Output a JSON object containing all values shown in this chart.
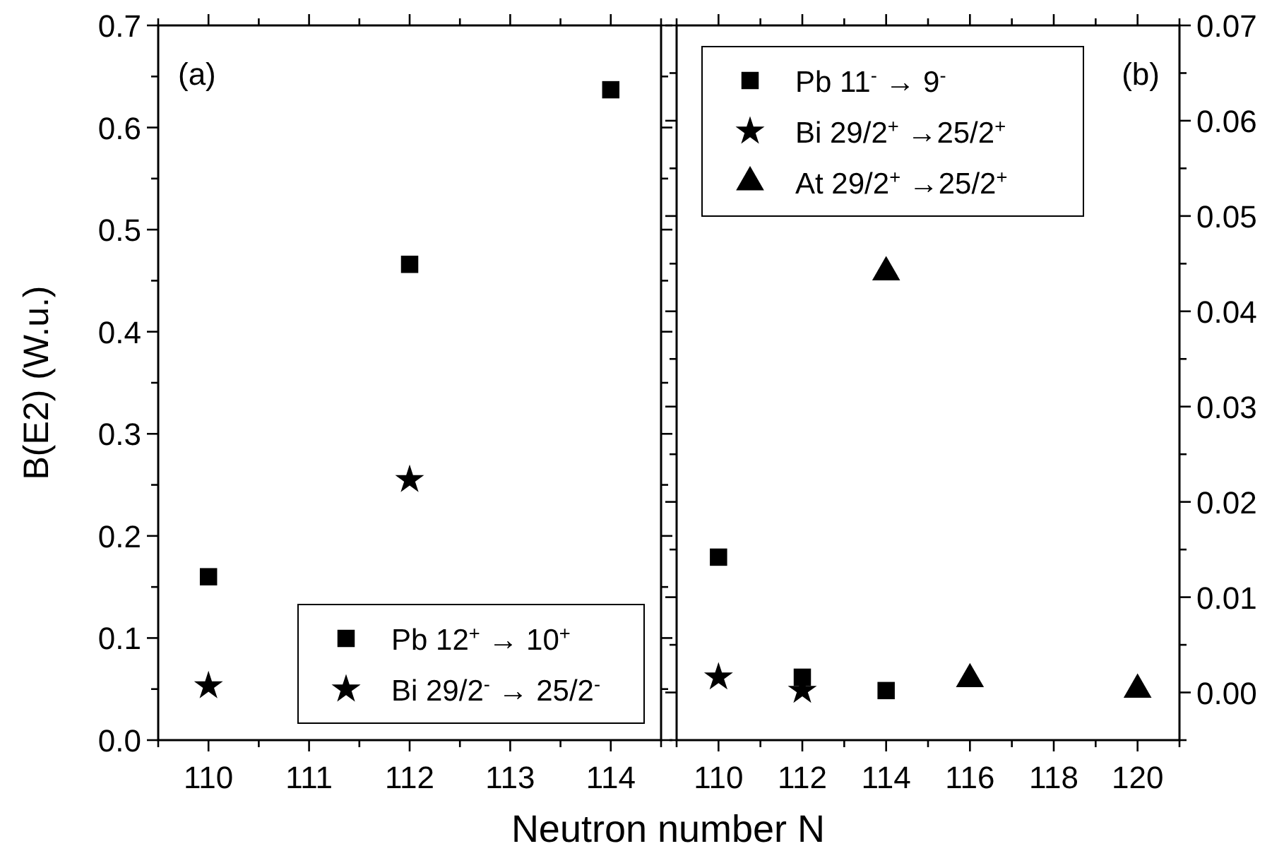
{
  "chart_data": [
    {
      "type": "scatter",
      "xlabel": "Neutron number N",
      "ylabel": "B(E2) (W.u.)",
      "annotations": [
        "(a)"
      ],
      "legend": "bottom right",
      "xlim": [
        109.5,
        114.5
      ],
      "ylim": [
        0,
        0.7
      ],
      "xticks": [
        {
          "value": 109.5,
          "label": null
        },
        110,
        {
          "value": 110.5,
          "label": null
        },
        111,
        {
          "value": 111.5,
          "label": null
        },
        112,
        {
          "value": 112.5,
          "label": null
        },
        113,
        {
          "value": 113.5,
          "label": null
        },
        114,
        {
          "value": 114.5,
          "label": null
        }
      ],
      "yticks": [
        {
          "value": 0,
          "label": "0.0"
        },
        {
          "value": 0.05,
          "label": null
        },
        0.1,
        {
          "value": 0.15,
          "label": null
        },
        0.2,
        {
          "value": 0.25,
          "label": null
        },
        0.3,
        {
          "value": 0.35,
          "label": null
        },
        0.4,
        {
          "value": 0.45,
          "label": null
        },
        0.5,
        {
          "value": 0.55,
          "label": null
        },
        0.6,
        {
          "value": 0.65,
          "label": null
        },
        0.7
      ],
      "series": [
        {
          "name": "Pb 12$^{+}$ → 10$^{+}$",
          "color": "#000000",
          "marker": "square",
          "x": [
            110,
            112,
            114
          ],
          "values": [
            0.16,
            0.466,
            0.637
          ]
        },
        {
          "name": "Bi 29/2$^{-}$ → 25/2$^{-}$",
          "color": "#000000",
          "marker": "star",
          "x": [
            110,
            112
          ],
          "values": [
            0.053,
            0.255
          ]
        }
      ]
    },
    {
      "type": "scatter",
      "annotations": [
        "(b)"
      ],
      "legend": "top left",
      "xlim": [
        109,
        121
      ],
      "ylim": [
        -0.005,
        0.07
      ],
      "xticks": [
        {
          "value": 109,
          "label": null
        },
        110,
        {
          "value": 111,
          "label": null
        },
        112,
        {
          "value": 113,
          "label": null
        },
        114,
        {
          "value": 115,
          "label": null
        },
        116,
        {
          "value": 117,
          "label": null
        },
        118,
        {
          "value": 119,
          "label": null
        },
        120,
        {
          "value": 121,
          "label": null
        }
      ],
      "yticks": [
        {
          "value": -0.005,
          "label": null
        },
        {
          "value": 0,
          "label": "0.00"
        },
        {
          "value": 0.005,
          "label": null
        },
        {
          "value": 0.01,
          "label": "0.01"
        },
        {
          "value": 0.015,
          "label": null
        },
        {
          "value": 0.02,
          "label": "0.02"
        },
        {
          "value": 0.025,
          "label": null
        },
        {
          "value": 0.03,
          "label": "0.03"
        },
        {
          "value": 0.035,
          "label": null
        },
        {
          "value": 0.04,
          "label": "0.04"
        },
        {
          "value": 0.045,
          "label": null
        },
        {
          "value": 0.05,
          "label": "0.05"
        },
        {
          "value": 0.055,
          "label": null
        },
        {
          "value": 0.06,
          "label": "0.06"
        },
        {
          "value": 0.065,
          "label": null
        },
        {
          "value": 0.07,
          "label": "0.07"
        }
      ],
      "series": [
        {
          "name": "Pb 11$^{-}$ → 9$^{-}$",
          "color": "#000000",
          "marker": "square",
          "x": [
            110,
            112,
            114
          ],
          "values": [
            0.0142,
            0.0016,
            0.0002
          ]
        },
        {
          "name": "Bi 29/2$^{+}$ →25/2$^{+}$",
          "color": "#000000",
          "marker": "star",
          "x": [
            110,
            112
          ],
          "values": [
            0.0016,
            0.0002
          ]
        },
        {
          "name": "At 29/2$^{+}$ →25/2$^{+}$",
          "color": "#000000",
          "marker": "triangle",
          "x": [
            114,
            116,
            120
          ],
          "values": [
            0.0441,
            0.0014,
            0.0003
          ]
        }
      ]
    }
  ]
}
